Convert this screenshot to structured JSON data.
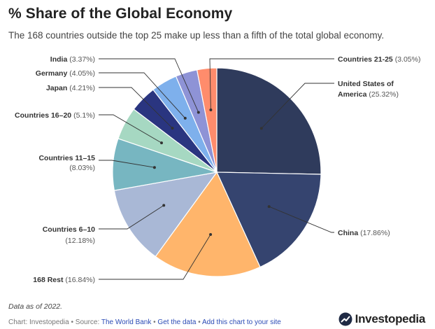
{
  "header": {
    "title": "% Share of the Global Economy",
    "subtitle": "The 168 countries outside the top 25 make up less than a fifth of the total global economy."
  },
  "chart_data": {
    "type": "pie",
    "title": "% Share of the Global Economy",
    "subtitle": "The 168 countries outside the top 25 make up less than a fifth of the total global economy.",
    "start_angle_deg": 0,
    "direction": "clockwise",
    "slices": [
      {
        "label": "United States of America",
        "value": 25.32,
        "value_label": "(25.32%)",
        "color": "#2f3b5c",
        "label_lines": [
          "United States of",
          "America"
        ]
      },
      {
        "label": "China",
        "value": 17.86,
        "value_label": "(17.86%)",
        "color": "#35446f",
        "label_lines": [
          "China"
        ]
      },
      {
        "label": "168 Rest",
        "value": 16.84,
        "value_label": "(16.84%)",
        "color": "#ffb56b",
        "label_lines": [
          "168 Rest"
        ]
      },
      {
        "label": "Countries 6–10",
        "value": 12.18,
        "value_label": "(12.18%)",
        "color": "#a9b8d6",
        "label_lines": [
          "Countries 6–10"
        ]
      },
      {
        "label": "Countries 11–15",
        "value": 8.03,
        "value_label": "(8.03%)",
        "color": "#77b6c1",
        "label_lines": [
          "Countries 11–15"
        ]
      },
      {
        "label": "Countries 16–20",
        "value": 5.1,
        "value_label": "(5.1%)",
        "color": "#a6d8c2",
        "label_lines": [
          "Countries 16–20"
        ]
      },
      {
        "label": "Japan",
        "value": 4.21,
        "value_label": "(4.21%)",
        "color": "#2a3580",
        "label_lines": [
          "Japan"
        ]
      },
      {
        "label": "Germany",
        "value": 4.05,
        "value_label": "(4.05%)",
        "color": "#7eb0ec",
        "label_lines": [
          "Germany"
        ]
      },
      {
        "label": "India",
        "value": 3.37,
        "value_label": "(3.37%)",
        "color": "#8e93d6",
        "label_lines": [
          "India"
        ]
      },
      {
        "label": "Countries 21-25",
        "value": 3.05,
        "value_label": "(3.05%)",
        "color": "#ff8c6c",
        "label_lines": [
          "Countries 21-25"
        ]
      }
    ]
  },
  "footer": {
    "note": "Data as of 2022.",
    "credit_prefix": "Chart: Investopedia • Source: ",
    "source_link": "The World Bank",
    "sep1": " • ",
    "get_data_link": "Get the data",
    "sep2": " • ",
    "add_chart_link": "Add this chart to your site",
    "logo_text": "Investopedia"
  }
}
